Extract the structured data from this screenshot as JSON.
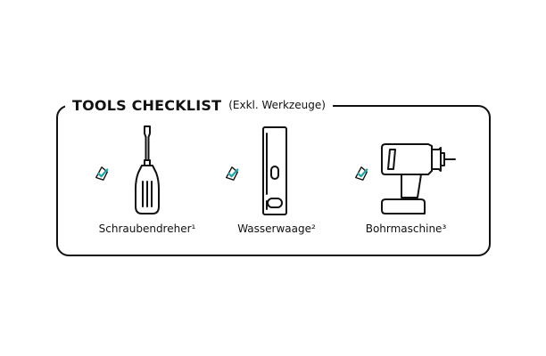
{
  "checklist": {
    "title": "TOOLS CHECKLIST",
    "subtitle": "(Exkl. Werkzeuge)",
    "accent_color": "#1aa7a8",
    "items": [
      {
        "label": "Schraubendreher¹",
        "icon": "screwdriver-icon",
        "checked": true
      },
      {
        "label": "Wasserwaage²",
        "icon": "spirit-level-icon",
        "checked": true
      },
      {
        "label": "Bohrmaschine³",
        "icon": "power-drill-icon",
        "checked": true
      }
    ]
  }
}
